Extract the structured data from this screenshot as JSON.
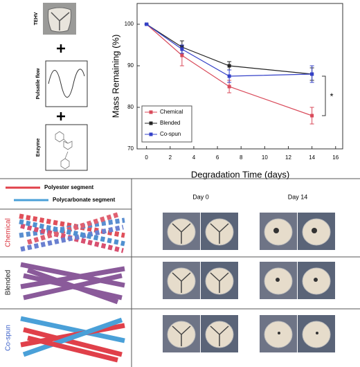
{
  "schematic": {
    "labels": [
      "TEHV",
      "Pulsatile flow",
      "Enzyme"
    ]
  },
  "chart_data": {
    "type": "line",
    "x_label": "Degradation Time (days)",
    "y_label": "Mass Remaining (%)",
    "x": [
      0,
      3,
      7,
      14
    ],
    "series": [
      {
        "name": "Chemical",
        "color": "#d94a5a",
        "values": [
          100,
          92.5,
          85,
          78
        ],
        "errors": [
          0,
          2.5,
          1.5,
          2
        ]
      },
      {
        "name": "Blended",
        "color": "#222222",
        "values": [
          100,
          94.5,
          90,
          88
        ],
        "errors": [
          0,
          1.5,
          1,
          1.5
        ]
      },
      {
        "name": "Co-spun",
        "color": "#3340c8",
        "values": [
          100,
          94,
          87.5,
          88
        ],
        "errors": [
          0,
          1,
          1.5,
          2
        ]
      }
    ],
    "xlim": [
      -0.8,
      16.6
    ],
    "xticks": [
      0,
      2,
      4,
      6,
      8,
      10,
      12,
      14,
      16
    ],
    "ylim": [
      70,
      105
    ],
    "yticks": [
      70,
      80,
      90,
      100
    ],
    "annotation": "*",
    "legend": "lower left"
  },
  "fiber_legend": [
    "Polyester segment",
    "Polycarbonate segment"
  ],
  "columns": [
    "Day 0",
    "Day 14"
  ],
  "rows": [
    "Chemical",
    "Blended",
    "Co-spun"
  ]
}
